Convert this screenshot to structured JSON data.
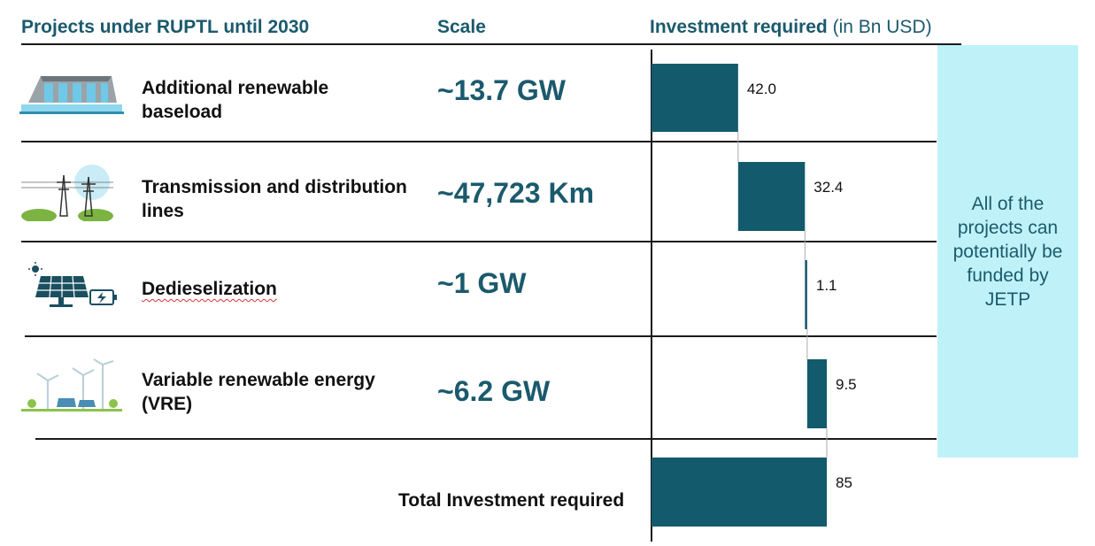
{
  "headers": {
    "projects": "Projects under RUPTL until 2030",
    "scale": "Scale",
    "investment_bold": "Investment required",
    "investment_unit": "(in Bn USD)"
  },
  "rows": [
    {
      "label": "Additional renewable baseload",
      "scale": "~13.7 GW",
      "icon": "hydro-dam-icon"
    },
    {
      "label": "Transmission and distribution lines",
      "scale": "~47,723 Km",
      "icon": "transmission-tower-icon"
    },
    {
      "label": "Dedieselization",
      "scale": "~1 GW",
      "icon": "solar-battery-icon"
    },
    {
      "label": "Variable renewable energy (VRE)",
      "scale": "~6.2 GW",
      "icon": "wind-solar-icon"
    }
  ],
  "total_label": "Total Investment required",
  "callout": "All of the projects can potentially be funded by JETP",
  "colors": {
    "bar": "#135a6d",
    "header_text": "#1b5a6c",
    "callout_bg": "#bff2f8"
  },
  "chart_data": {
    "type": "bar",
    "subtype": "waterfall",
    "orientation": "horizontal",
    "categories": [
      "Additional renewable baseload",
      "Transmission and distribution lines",
      "Dedieselization",
      "Variable renewable energy (VRE)",
      "Total Investment required"
    ],
    "values": [
      42.0,
      32.4,
      1.1,
      9.5,
      85
    ],
    "value_labels": [
      "42.0",
      "32.4",
      "1.1",
      "9.5",
      "85"
    ],
    "is_total": [
      false,
      false,
      false,
      false,
      true
    ],
    "xlim": [
      0,
      85
    ],
    "xlabel": "Investment required (in Bn USD)",
    "grid": false
  }
}
